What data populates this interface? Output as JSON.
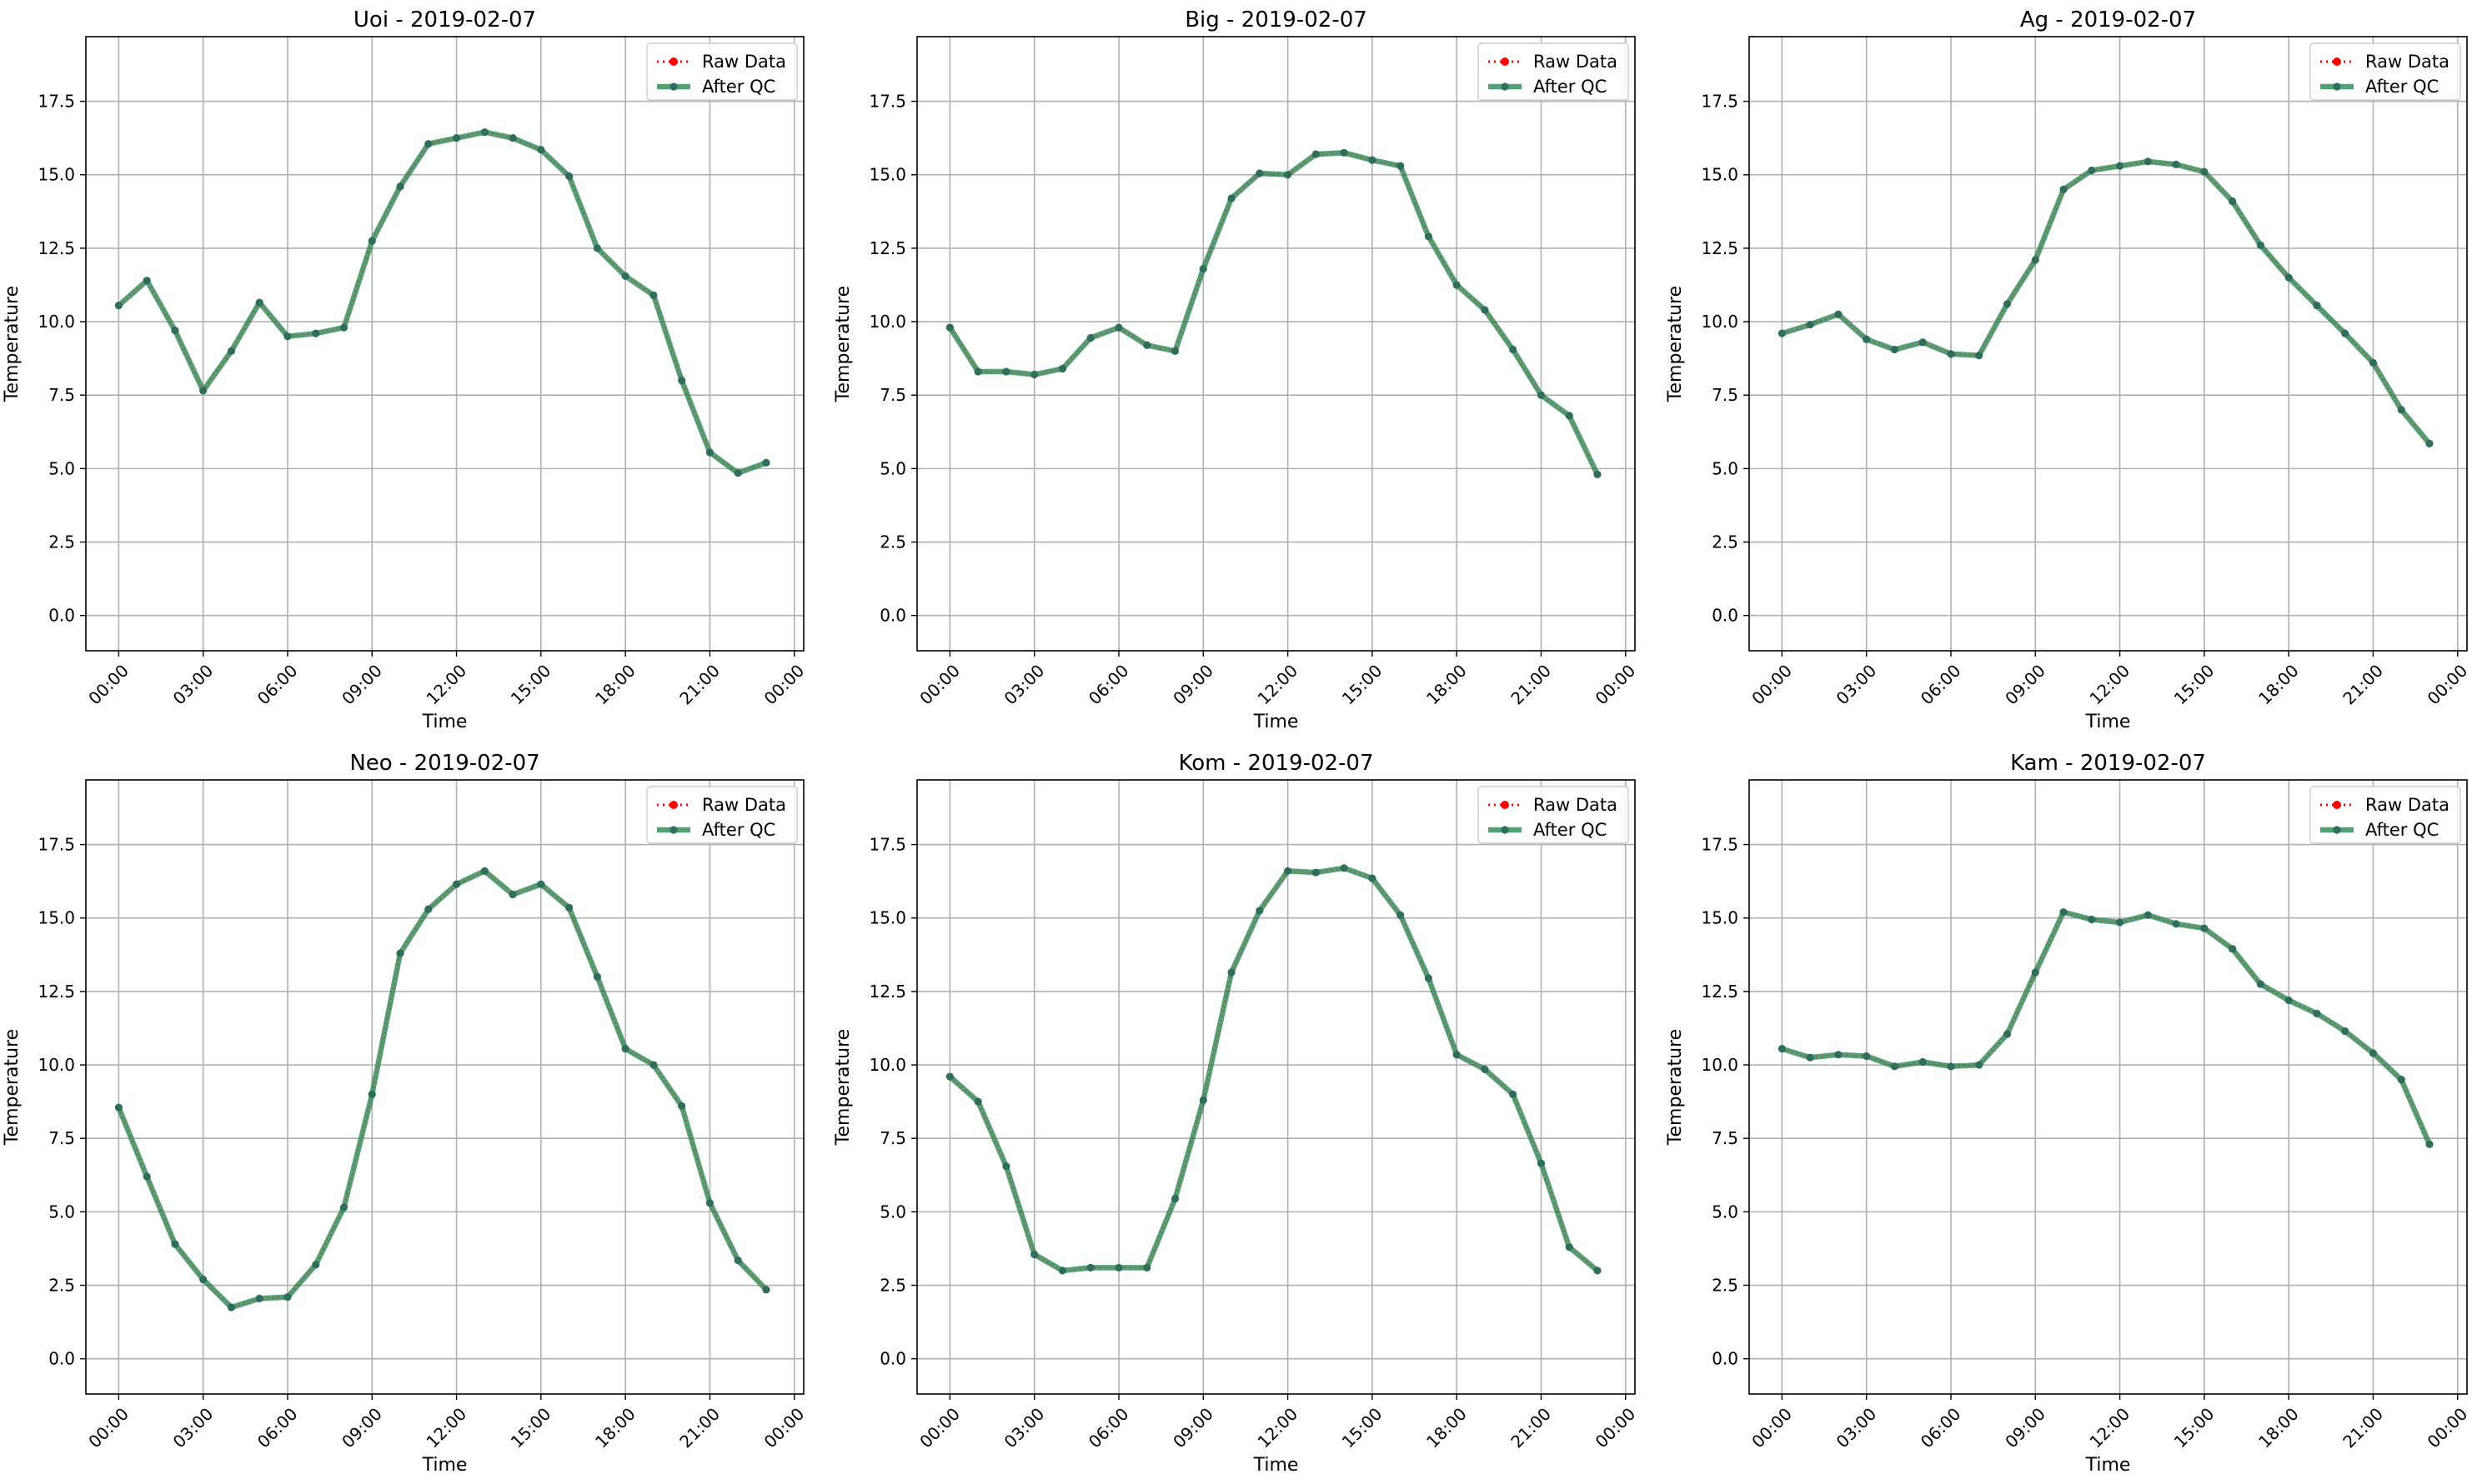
{
  "figure": {
    "colors": {
      "raw": "#ff0000",
      "after_qc": "#2e8b57",
      "after_qc_marker": "#2f6e5a",
      "grid": "#b0b0b0",
      "legend_border": "#cccccc"
    }
  },
  "chart_data": [
    {
      "type": "line",
      "title": "Uoi - 2019-02-07",
      "xlabel": "Time",
      "ylabel": "Temperature",
      "ylim": [
        -1.2,
        19.7
      ],
      "y_ticks": [
        "0.0",
        "2.5",
        "5.0",
        "7.5",
        "10.0",
        "12.5",
        "15.0",
        "17.5"
      ],
      "x_ticks": [
        "00:00",
        "03:00",
        "06:00",
        "09:00",
        "12:00",
        "15:00",
        "18:00",
        "21:00",
        "00:00"
      ],
      "grid": true,
      "legend_position": "top-right",
      "x": [
        "00:00",
        "01:00",
        "02:00",
        "03:00",
        "04:00",
        "05:00",
        "06:00",
        "07:00",
        "08:00",
        "09:00",
        "10:00",
        "11:00",
        "12:00",
        "13:00",
        "14:00",
        "15:00",
        "16:00",
        "17:00",
        "18:00",
        "19:00",
        "20:00",
        "21:00",
        "22:00",
        "23:00"
      ],
      "series": [
        {
          "name": "Raw Data",
          "style": "dotted",
          "values": [
            10.55,
            11.4,
            9.7,
            7.65,
            9.0,
            10.65,
            9.5,
            9.6,
            9.8,
            12.75,
            14.6,
            16.05,
            16.25,
            16.45,
            16.25,
            15.85,
            14.95,
            12.5,
            11.55,
            10.9,
            8.0,
            5.55,
            4.85,
            5.2
          ]
        },
        {
          "name": "After QC",
          "style": "solid",
          "values": [
            10.55,
            11.4,
            9.7,
            7.65,
            9.0,
            10.65,
            9.5,
            9.6,
            9.8,
            12.75,
            14.6,
            16.05,
            16.25,
            16.45,
            16.25,
            15.85,
            14.95,
            12.5,
            11.55,
            10.9,
            8.0,
            5.55,
            4.85,
            5.2
          ]
        }
      ]
    },
    {
      "type": "line",
      "title": "Big - 2019-02-07",
      "xlabel": "Time",
      "ylabel": "Temperature",
      "ylim": [
        -1.2,
        19.7
      ],
      "y_ticks": [
        "0.0",
        "2.5",
        "5.0",
        "7.5",
        "10.0",
        "12.5",
        "15.0",
        "17.5"
      ],
      "x_ticks": [
        "00:00",
        "03:00",
        "06:00",
        "09:00",
        "12:00",
        "15:00",
        "18:00",
        "21:00",
        "00:00"
      ],
      "grid": true,
      "legend_position": "top-right",
      "x": [
        "00:00",
        "01:00",
        "02:00",
        "03:00",
        "04:00",
        "05:00",
        "06:00",
        "07:00",
        "08:00",
        "09:00",
        "10:00",
        "11:00",
        "12:00",
        "13:00",
        "14:00",
        "15:00",
        "16:00",
        "17:00",
        "18:00",
        "19:00",
        "20:00",
        "21:00",
        "22:00",
        "23:00"
      ],
      "series": [
        {
          "name": "Raw Data",
          "style": "dotted",
          "values": [
            9.8,
            8.3,
            8.3,
            8.2,
            8.4,
            9.45,
            9.8,
            9.2,
            9.0,
            11.8,
            14.2,
            15.05,
            15.0,
            15.7,
            15.75,
            15.5,
            15.3,
            12.9,
            11.25,
            10.4,
            9.05,
            7.5,
            6.8,
            4.8
          ]
        },
        {
          "name": "After QC",
          "style": "solid",
          "values": [
            9.8,
            8.3,
            8.3,
            8.2,
            8.4,
            9.45,
            9.8,
            9.2,
            9.0,
            11.8,
            14.2,
            15.05,
            15.0,
            15.7,
            15.75,
            15.5,
            15.3,
            12.9,
            11.25,
            10.4,
            9.05,
            7.5,
            6.8,
            4.8
          ]
        }
      ]
    },
    {
      "type": "line",
      "title": "Ag - 2019-02-07",
      "xlabel": "Time",
      "ylabel": "Temperature",
      "ylim": [
        -1.2,
        19.7
      ],
      "y_ticks": [
        "0.0",
        "2.5",
        "5.0",
        "7.5",
        "10.0",
        "12.5",
        "15.0",
        "17.5"
      ],
      "x_ticks": [
        "00:00",
        "03:00",
        "06:00",
        "09:00",
        "12:00",
        "15:00",
        "18:00",
        "21:00",
        "00:00"
      ],
      "grid": true,
      "legend_position": "top-right",
      "x": [
        "00:00",
        "01:00",
        "02:00",
        "03:00",
        "04:00",
        "05:00",
        "06:00",
        "07:00",
        "08:00",
        "09:00",
        "10:00",
        "11:00",
        "12:00",
        "13:00",
        "14:00",
        "15:00",
        "16:00",
        "17:00",
        "18:00",
        "19:00",
        "20:00",
        "21:00",
        "22:00",
        "23:00"
      ],
      "series": [
        {
          "name": "Raw Data",
          "style": "dotted",
          "values": [
            9.6,
            9.9,
            10.25,
            9.4,
            9.05,
            9.3,
            8.9,
            8.85,
            10.6,
            12.1,
            14.5,
            15.15,
            15.3,
            15.45,
            15.35,
            15.1,
            14.1,
            12.6,
            11.5,
            10.55,
            9.6,
            8.6,
            7.0,
            5.85
          ]
        },
        {
          "name": "After QC",
          "style": "solid",
          "values": [
            9.6,
            9.9,
            10.25,
            9.4,
            9.05,
            9.3,
            8.9,
            8.85,
            10.6,
            12.1,
            14.5,
            15.15,
            15.3,
            15.45,
            15.35,
            15.1,
            14.1,
            12.6,
            11.5,
            10.55,
            9.6,
            8.6,
            7.0,
            5.85
          ]
        }
      ]
    },
    {
      "type": "line",
      "title": "Neo - 2019-02-07",
      "xlabel": "Time",
      "ylabel": "Temperature",
      "ylim": [
        -1.2,
        19.7
      ],
      "y_ticks": [
        "0.0",
        "2.5",
        "5.0",
        "7.5",
        "10.0",
        "12.5",
        "15.0",
        "17.5"
      ],
      "x_ticks": [
        "00:00",
        "03:00",
        "06:00",
        "09:00",
        "12:00",
        "15:00",
        "18:00",
        "21:00",
        "00:00"
      ],
      "grid": true,
      "legend_position": "top-right",
      "x": [
        "00:00",
        "01:00",
        "02:00",
        "03:00",
        "04:00",
        "05:00",
        "06:00",
        "07:00",
        "08:00",
        "09:00",
        "10:00",
        "11:00",
        "12:00",
        "13:00",
        "14:00",
        "15:00",
        "16:00",
        "17:00",
        "18:00",
        "19:00",
        "20:00",
        "21:00",
        "22:00",
        "23:00"
      ],
      "series": [
        {
          "name": "Raw Data",
          "style": "dotted",
          "values": [
            8.55,
            6.2,
            3.9,
            2.7,
            1.75,
            2.05,
            2.1,
            3.2,
            5.15,
            9.0,
            13.8,
            15.3,
            16.15,
            16.6,
            15.8,
            16.15,
            15.35,
            13.0,
            10.55,
            10.0,
            8.6,
            5.3,
            3.35,
            2.35
          ]
        },
        {
          "name": "After QC",
          "style": "solid",
          "values": [
            8.55,
            6.2,
            3.9,
            2.7,
            1.75,
            2.05,
            2.1,
            3.2,
            5.15,
            9.0,
            13.8,
            15.3,
            16.15,
            16.6,
            15.8,
            16.15,
            15.35,
            13.0,
            10.55,
            10.0,
            8.6,
            5.3,
            3.35,
            2.35
          ]
        }
      ]
    },
    {
      "type": "line",
      "title": "Kom - 2019-02-07",
      "xlabel": "Time",
      "ylabel": "Temperature",
      "ylim": [
        -1.2,
        19.7
      ],
      "y_ticks": [
        "0.0",
        "2.5",
        "5.0",
        "7.5",
        "10.0",
        "12.5",
        "15.0",
        "17.5"
      ],
      "x_ticks": [
        "00:00",
        "03:00",
        "06:00",
        "09:00",
        "12:00",
        "15:00",
        "18:00",
        "21:00",
        "00:00"
      ],
      "grid": true,
      "legend_position": "top-right",
      "x": [
        "00:00",
        "01:00",
        "02:00",
        "03:00",
        "04:00",
        "05:00",
        "06:00",
        "07:00",
        "08:00",
        "09:00",
        "10:00",
        "11:00",
        "12:00",
        "13:00",
        "14:00",
        "15:00",
        "16:00",
        "17:00",
        "18:00",
        "19:00",
        "20:00",
        "21:00",
        "22:00",
        "23:00"
      ],
      "series": [
        {
          "name": "Raw Data",
          "style": "dotted",
          "values": [
            9.6,
            8.75,
            6.55,
            3.55,
            3.0,
            3.1,
            3.1,
            3.1,
            5.45,
            8.8,
            13.15,
            15.25,
            16.6,
            16.55,
            16.7,
            16.35,
            15.1,
            12.95,
            10.35,
            9.85,
            9.0,
            6.65,
            3.8,
            3.0
          ]
        },
        {
          "name": "After QC",
          "style": "solid",
          "values": [
            9.6,
            8.75,
            6.55,
            3.55,
            3.0,
            3.1,
            3.1,
            3.1,
            5.45,
            8.8,
            13.15,
            15.25,
            16.6,
            16.55,
            16.7,
            16.35,
            15.1,
            12.95,
            10.35,
            9.85,
            9.0,
            6.65,
            3.8,
            3.0
          ]
        }
      ]
    },
    {
      "type": "line",
      "title": "Kam - 2019-02-07",
      "xlabel": "Time",
      "ylabel": "Temperature",
      "ylim": [
        -1.2,
        19.7
      ],
      "y_ticks": [
        "0.0",
        "2.5",
        "5.0",
        "7.5",
        "10.0",
        "12.5",
        "15.0",
        "17.5"
      ],
      "x_ticks": [
        "00:00",
        "03:00",
        "06:00",
        "09:00",
        "12:00",
        "15:00",
        "18:00",
        "21:00",
        "00:00"
      ],
      "grid": true,
      "legend_position": "top-right",
      "x": [
        "00:00",
        "01:00",
        "02:00",
        "03:00",
        "04:00",
        "05:00",
        "06:00",
        "07:00",
        "08:00",
        "09:00",
        "10:00",
        "11:00",
        "12:00",
        "13:00",
        "14:00",
        "15:00",
        "16:00",
        "17:00",
        "18:00",
        "19:00",
        "20:00",
        "21:00",
        "22:00",
        "23:00"
      ],
      "series": [
        {
          "name": "Raw Data",
          "style": "dotted",
          "values": [
            10.55,
            10.25,
            10.35,
            10.3,
            9.95,
            10.1,
            9.95,
            10.0,
            11.05,
            13.15,
            15.2,
            14.95,
            14.85,
            15.1,
            14.8,
            14.65,
            13.95,
            12.75,
            12.2,
            11.75,
            11.15,
            10.4,
            9.5,
            7.3
          ]
        },
        {
          "name": "After QC",
          "style": "solid",
          "values": [
            10.55,
            10.25,
            10.35,
            10.3,
            9.95,
            10.1,
            9.95,
            10.0,
            11.05,
            13.15,
            15.2,
            14.95,
            14.85,
            15.1,
            14.8,
            14.65,
            13.95,
            12.75,
            12.2,
            11.75,
            11.15,
            10.4,
            9.5,
            7.3
          ]
        }
      ]
    }
  ]
}
